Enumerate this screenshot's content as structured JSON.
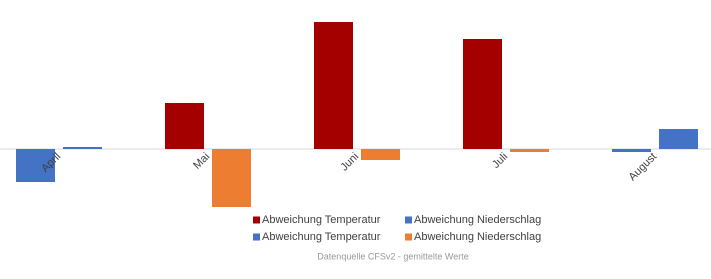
{
  "chart_data": {
    "type": "bar",
    "categories": [
      "April",
      "Mai",
      "Juni",
      "Juli",
      "August"
    ],
    "series": [
      {
        "name": "Abweichung Temperatur",
        "color": "#a50000",
        "values": [
          null,
          4.6,
          12.7,
          11.0,
          null
        ]
      },
      {
        "name": "Abweichung Niederschlag",
        "color": "#4472c4",
        "values": [
          0.2,
          null,
          null,
          null,
          2.0
        ]
      },
      {
        "name": "Abweichung Temperatur",
        "color": "#4472c4",
        "values": [
          -3.3,
          null,
          null,
          null,
          -0.3
        ]
      },
      {
        "name": "Abweichung Niederschlag",
        "color": "#ed7d31",
        "values": [
          null,
          -5.8,
          -1.1,
          -0.3,
          null
        ]
      }
    ],
    "ylim": [
      -6,
      13
    ],
    "source": "Datenquelle CFSv2 - gemittelte Werte"
  }
}
